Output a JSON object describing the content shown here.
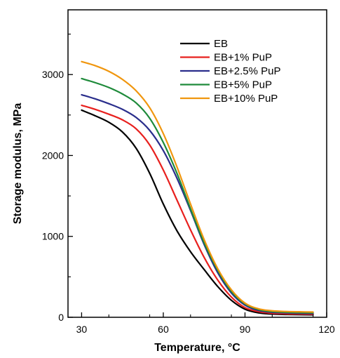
{
  "chart_data": {
    "type": "line",
    "title": "",
    "xlabel": "Temperature, °C",
    "ylabel": "Storage modulus, MPa",
    "xlim": [
      25,
      120
    ],
    "ylim": [
      0,
      3800
    ],
    "xticks": [
      30,
      60,
      90,
      120
    ],
    "yticks": [
      0,
      1000,
      2000,
      3000
    ],
    "grid": false,
    "legend_position": "top-right",
    "series": [
      {
        "name": "EB",
        "color": "#000000",
        "x": [
          30,
          35,
          40,
          45,
          50,
          55,
          60,
          65,
          70,
          75,
          80,
          85,
          90,
          95,
          100,
          105,
          110,
          115
        ],
        "y": [
          2560,
          2490,
          2410,
          2290,
          2090,
          1780,
          1400,
          1070,
          810,
          590,
          380,
          210,
          100,
          55,
          40,
          35,
          32,
          30
        ]
      },
      {
        "name": "EB+1% PuP",
        "color": "#e8201e",
        "x": [
          30,
          35,
          40,
          45,
          50,
          55,
          60,
          65,
          70,
          75,
          80,
          85,
          90,
          95,
          100,
          105,
          110,
          115
        ],
        "y": [
          2620,
          2570,
          2510,
          2440,
          2330,
          2130,
          1820,
          1450,
          1080,
          740,
          460,
          250,
          120,
          70,
          50,
          43,
          40,
          38
        ]
      },
      {
        "name": "EB+2.5% PuP",
        "color": "#2a2e8c",
        "x": [
          30,
          35,
          40,
          45,
          50,
          55,
          60,
          65,
          70,
          75,
          80,
          85,
          90,
          95,
          100,
          105,
          110,
          115
        ],
        "y": [
          2750,
          2700,
          2640,
          2570,
          2470,
          2310,
          2060,
          1720,
          1320,
          900,
          550,
          300,
          150,
          85,
          62,
          55,
          50,
          48
        ]
      },
      {
        "name": "EB+5% PuP",
        "color": "#1e8a3a",
        "x": [
          30,
          35,
          40,
          45,
          50,
          55,
          60,
          65,
          70,
          75,
          80,
          85,
          90,
          95,
          100,
          105,
          110,
          115
        ],
        "y": [
          2950,
          2900,
          2840,
          2760,
          2650,
          2460,
          2160,
          1780,
          1340,
          920,
          580,
          320,
          165,
          95,
          70,
          62,
          57,
          55
        ]
      },
      {
        "name": "EB+10% PuP",
        "color": "#f0960e",
        "x": [
          30,
          35,
          40,
          45,
          50,
          55,
          60,
          65,
          70,
          75,
          80,
          85,
          90,
          95,
          100,
          105,
          110,
          115
        ],
        "y": [
          3160,
          3110,
          3040,
          2940,
          2800,
          2590,
          2270,
          1860,
          1400,
          960,
          600,
          340,
          175,
          105,
          80,
          72,
          68,
          65
        ]
      }
    ]
  }
}
